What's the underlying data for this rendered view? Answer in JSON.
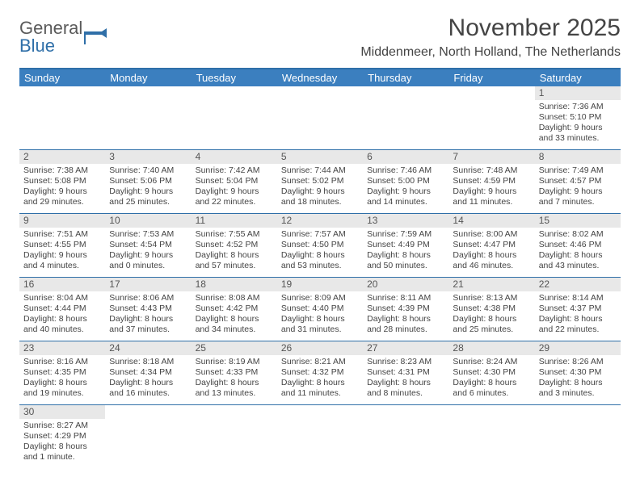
{
  "logo": {
    "text1": "General",
    "text2": "Blue"
  },
  "title": "November 2025",
  "location": "Middenmeer, North Holland, The Netherlands",
  "colors": {
    "header_bg": "#3b7fbf",
    "border": "#2f6fa8",
    "daynum_bg": "#e8e8e8",
    "text": "#444444"
  },
  "weekdays": [
    "Sunday",
    "Monday",
    "Tuesday",
    "Wednesday",
    "Thursday",
    "Friday",
    "Saturday"
  ],
  "weeks": [
    [
      null,
      null,
      null,
      null,
      null,
      null,
      {
        "n": "1",
        "sr": "Sunrise: 7:36 AM",
        "ss": "Sunset: 5:10 PM",
        "dl": "Daylight: 9 hours and 33 minutes."
      }
    ],
    [
      {
        "n": "2",
        "sr": "Sunrise: 7:38 AM",
        "ss": "Sunset: 5:08 PM",
        "dl": "Daylight: 9 hours and 29 minutes."
      },
      {
        "n": "3",
        "sr": "Sunrise: 7:40 AM",
        "ss": "Sunset: 5:06 PM",
        "dl": "Daylight: 9 hours and 25 minutes."
      },
      {
        "n": "4",
        "sr": "Sunrise: 7:42 AM",
        "ss": "Sunset: 5:04 PM",
        "dl": "Daylight: 9 hours and 22 minutes."
      },
      {
        "n": "5",
        "sr": "Sunrise: 7:44 AM",
        "ss": "Sunset: 5:02 PM",
        "dl": "Daylight: 9 hours and 18 minutes."
      },
      {
        "n": "6",
        "sr": "Sunrise: 7:46 AM",
        "ss": "Sunset: 5:00 PM",
        "dl": "Daylight: 9 hours and 14 minutes."
      },
      {
        "n": "7",
        "sr": "Sunrise: 7:48 AM",
        "ss": "Sunset: 4:59 PM",
        "dl": "Daylight: 9 hours and 11 minutes."
      },
      {
        "n": "8",
        "sr": "Sunrise: 7:49 AM",
        "ss": "Sunset: 4:57 PM",
        "dl": "Daylight: 9 hours and 7 minutes."
      }
    ],
    [
      {
        "n": "9",
        "sr": "Sunrise: 7:51 AM",
        "ss": "Sunset: 4:55 PM",
        "dl": "Daylight: 9 hours and 4 minutes."
      },
      {
        "n": "10",
        "sr": "Sunrise: 7:53 AM",
        "ss": "Sunset: 4:54 PM",
        "dl": "Daylight: 9 hours and 0 minutes."
      },
      {
        "n": "11",
        "sr": "Sunrise: 7:55 AM",
        "ss": "Sunset: 4:52 PM",
        "dl": "Daylight: 8 hours and 57 minutes."
      },
      {
        "n": "12",
        "sr": "Sunrise: 7:57 AM",
        "ss": "Sunset: 4:50 PM",
        "dl": "Daylight: 8 hours and 53 minutes."
      },
      {
        "n": "13",
        "sr": "Sunrise: 7:59 AM",
        "ss": "Sunset: 4:49 PM",
        "dl": "Daylight: 8 hours and 50 minutes."
      },
      {
        "n": "14",
        "sr": "Sunrise: 8:00 AM",
        "ss": "Sunset: 4:47 PM",
        "dl": "Daylight: 8 hours and 46 minutes."
      },
      {
        "n": "15",
        "sr": "Sunrise: 8:02 AM",
        "ss": "Sunset: 4:46 PM",
        "dl": "Daylight: 8 hours and 43 minutes."
      }
    ],
    [
      {
        "n": "16",
        "sr": "Sunrise: 8:04 AM",
        "ss": "Sunset: 4:44 PM",
        "dl": "Daylight: 8 hours and 40 minutes."
      },
      {
        "n": "17",
        "sr": "Sunrise: 8:06 AM",
        "ss": "Sunset: 4:43 PM",
        "dl": "Daylight: 8 hours and 37 minutes."
      },
      {
        "n": "18",
        "sr": "Sunrise: 8:08 AM",
        "ss": "Sunset: 4:42 PM",
        "dl": "Daylight: 8 hours and 34 minutes."
      },
      {
        "n": "19",
        "sr": "Sunrise: 8:09 AM",
        "ss": "Sunset: 4:40 PM",
        "dl": "Daylight: 8 hours and 31 minutes."
      },
      {
        "n": "20",
        "sr": "Sunrise: 8:11 AM",
        "ss": "Sunset: 4:39 PM",
        "dl": "Daylight: 8 hours and 28 minutes."
      },
      {
        "n": "21",
        "sr": "Sunrise: 8:13 AM",
        "ss": "Sunset: 4:38 PM",
        "dl": "Daylight: 8 hours and 25 minutes."
      },
      {
        "n": "22",
        "sr": "Sunrise: 8:14 AM",
        "ss": "Sunset: 4:37 PM",
        "dl": "Daylight: 8 hours and 22 minutes."
      }
    ],
    [
      {
        "n": "23",
        "sr": "Sunrise: 8:16 AM",
        "ss": "Sunset: 4:35 PM",
        "dl": "Daylight: 8 hours and 19 minutes."
      },
      {
        "n": "24",
        "sr": "Sunrise: 8:18 AM",
        "ss": "Sunset: 4:34 PM",
        "dl": "Daylight: 8 hours and 16 minutes."
      },
      {
        "n": "25",
        "sr": "Sunrise: 8:19 AM",
        "ss": "Sunset: 4:33 PM",
        "dl": "Daylight: 8 hours and 13 minutes."
      },
      {
        "n": "26",
        "sr": "Sunrise: 8:21 AM",
        "ss": "Sunset: 4:32 PM",
        "dl": "Daylight: 8 hours and 11 minutes."
      },
      {
        "n": "27",
        "sr": "Sunrise: 8:23 AM",
        "ss": "Sunset: 4:31 PM",
        "dl": "Daylight: 8 hours and 8 minutes."
      },
      {
        "n": "28",
        "sr": "Sunrise: 8:24 AM",
        "ss": "Sunset: 4:30 PM",
        "dl": "Daylight: 8 hours and 6 minutes."
      },
      {
        "n": "29",
        "sr": "Sunrise: 8:26 AM",
        "ss": "Sunset: 4:30 PM",
        "dl": "Daylight: 8 hours and 3 minutes."
      }
    ],
    [
      {
        "n": "30",
        "sr": "Sunrise: 8:27 AM",
        "ss": "Sunset: 4:29 PM",
        "dl": "Daylight: 8 hours and 1 minute."
      },
      null,
      null,
      null,
      null,
      null,
      null
    ]
  ]
}
